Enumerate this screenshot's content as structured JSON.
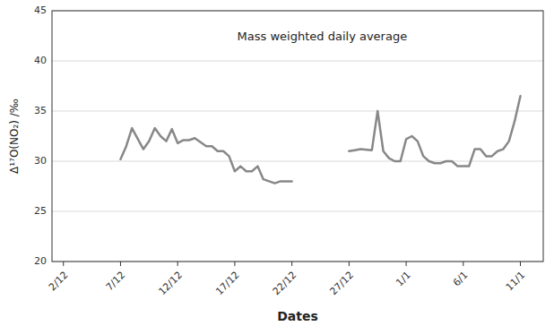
{
  "chart_data": {
    "type": "line",
    "title": "Mass weighted daily average",
    "x_label": "Dates",
    "y_label": "Δ¹⁷O(NO₂) /‰",
    "xlim": [
      -1,
      42
    ],
    "xticks": [
      {
        "value": 0,
        "label": "2/12"
      },
      {
        "value": 5,
        "label": "7/12"
      },
      {
        "value": 10,
        "label": "12/12"
      },
      {
        "value": 15,
        "label": "17/12"
      },
      {
        "value": 20,
        "label": "22/12"
      },
      {
        "value": 25,
        "label": "27/12"
      },
      {
        "value": 30,
        "label": "1/1"
      },
      {
        "value": 35,
        "label": "6/1"
      },
      {
        "value": 40,
        "label": "11/1"
      }
    ],
    "ylim": [
      20,
      45
    ],
    "yticks": [
      20,
      25,
      30,
      35,
      40,
      45
    ],
    "grid": true,
    "series": [
      {
        "color": "#888888",
        "x": [
          5,
          5.5,
          6,
          7,
          7.5,
          8,
          8.5,
          9,
          9.5,
          10,
          10.5,
          11,
          11.5,
          12,
          12.5,
          13,
          13.5,
          14,
          14.5,
          15,
          15.5,
          16,
          16.5,
          17,
          17.5,
          18,
          18.5,
          19,
          19.5,
          20
        ],
        "values": [
          30.2,
          31.5,
          33.3,
          31.2,
          32.0,
          33.3,
          32.5,
          32.0,
          33.2,
          31.8,
          32.1,
          32.1,
          32.3,
          31.9,
          31.5,
          31.5,
          31.0,
          31.0,
          30.5,
          29.0,
          29.5,
          29.0,
          29.0,
          29.5,
          28.2,
          28.0,
          27.8,
          28.0,
          28.0,
          28.0
        ]
      },
      {
        "color": "#888888",
        "x": [
          25,
          25.5,
          26,
          27,
          27.5,
          28,
          28.5,
          29,
          29.5,
          30,
          30.5,
          31,
          31.5,
          32,
          32.5,
          33,
          33.5,
          34,
          34.5,
          35,
          35.5,
          36,
          36.5,
          37,
          37.5,
          38,
          38.5,
          39,
          39.5,
          40
        ],
        "values": [
          31.0,
          31.1,
          31.2,
          31.1,
          35.0,
          31.0,
          30.3,
          30.0,
          30.0,
          32.2,
          32.5,
          32.0,
          30.5,
          30.0,
          29.8,
          29.8,
          30.0,
          30.0,
          29.5,
          29.5,
          29.5,
          31.2,
          31.2,
          30.5,
          30.5,
          31.0,
          31.2,
          32.0,
          34.0,
          36.5
        ]
      }
    ]
  }
}
